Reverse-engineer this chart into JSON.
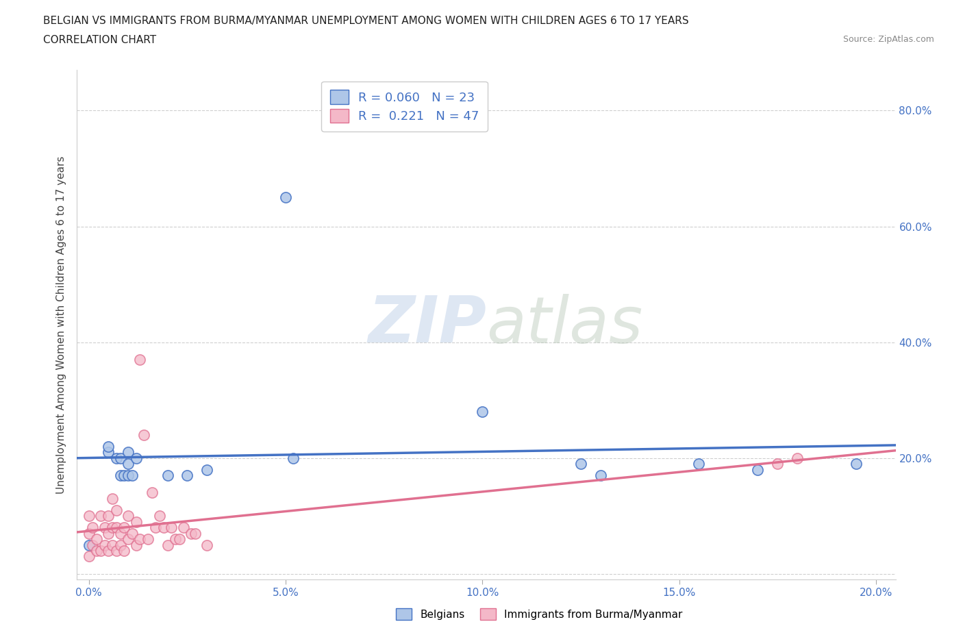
{
  "title_line1": "BELGIAN VS IMMIGRANTS FROM BURMA/MYANMAR UNEMPLOYMENT AMONG WOMEN WITH CHILDREN AGES 6 TO 17 YEARS",
  "title_line2": "CORRELATION CHART",
  "source": "Source: ZipAtlas.com",
  "ylabel": "Unemployment Among Women with Children Ages 6 to 17 years",
  "watermark_zip": "ZIP",
  "watermark_atlas": "atlas",
  "belgians_label": "Belgians",
  "belgians_color": "#aec6e8",
  "belgians_edge": "#4472c4",
  "belgians_line": "#4472c4",
  "belgians_R": 0.06,
  "belgians_N": 23,
  "belgians_x": [
    0.0,
    0.005,
    0.005,
    0.007,
    0.008,
    0.008,
    0.009,
    0.01,
    0.01,
    0.01,
    0.011,
    0.012,
    0.02,
    0.025,
    0.03,
    0.05,
    0.052,
    0.1,
    0.125,
    0.13,
    0.155,
    0.17,
    0.195
  ],
  "belgians_y": [
    0.05,
    0.21,
    0.22,
    0.2,
    0.17,
    0.2,
    0.17,
    0.19,
    0.17,
    0.21,
    0.17,
    0.2,
    0.17,
    0.17,
    0.18,
    0.65,
    0.2,
    0.28,
    0.19,
    0.17,
    0.19,
    0.18,
    0.19
  ],
  "immigrants_label": "Immigrants from Burma/Myanmar",
  "immigrants_color": "#f4b8c8",
  "immigrants_edge": "#e07090",
  "immigrants_line": "#e07090",
  "immigrants_R": 0.221,
  "immigrants_N": 47,
  "immigrants_x": [
    0.0,
    0.0,
    0.0,
    0.001,
    0.001,
    0.002,
    0.002,
    0.003,
    0.003,
    0.004,
    0.004,
    0.005,
    0.005,
    0.005,
    0.006,
    0.006,
    0.006,
    0.007,
    0.007,
    0.007,
    0.008,
    0.008,
    0.009,
    0.009,
    0.01,
    0.01,
    0.011,
    0.012,
    0.012,
    0.013,
    0.013,
    0.014,
    0.015,
    0.016,
    0.017,
    0.018,
    0.019,
    0.02,
    0.021,
    0.022,
    0.023,
    0.024,
    0.026,
    0.027,
    0.03,
    0.175,
    0.18
  ],
  "immigrants_y": [
    0.03,
    0.07,
    0.1,
    0.05,
    0.08,
    0.04,
    0.06,
    0.04,
    0.1,
    0.05,
    0.08,
    0.04,
    0.07,
    0.1,
    0.05,
    0.08,
    0.13,
    0.04,
    0.08,
    0.11,
    0.05,
    0.07,
    0.04,
    0.08,
    0.06,
    0.1,
    0.07,
    0.05,
    0.09,
    0.06,
    0.37,
    0.24,
    0.06,
    0.14,
    0.08,
    0.1,
    0.08,
    0.05,
    0.08,
    0.06,
    0.06,
    0.08,
    0.07,
    0.07,
    0.05,
    0.19,
    0.2
  ],
  "xlim": [
    -0.003,
    0.205
  ],
  "ylim": [
    -0.01,
    0.87
  ],
  "xticks": [
    0.0,
    0.05,
    0.1,
    0.15,
    0.2
  ],
  "xtick_labels": [
    "0.0%",
    "5.0%",
    "10.0%",
    "15.0%",
    "20.0%"
  ],
  "yticks": [
    0.0,
    0.2,
    0.4,
    0.6,
    0.8
  ],
  "ytick_labels_right": [
    "",
    "20.0%",
    "40.0%",
    "60.0%",
    "80.0%"
  ],
  "background_color": "#ffffff",
  "grid_color": "#bbbbbb",
  "title_color": "#222222",
  "axis_label_color": "#444444",
  "ytick_color": "#4472c4",
  "xtick_color": "#4472c4"
}
